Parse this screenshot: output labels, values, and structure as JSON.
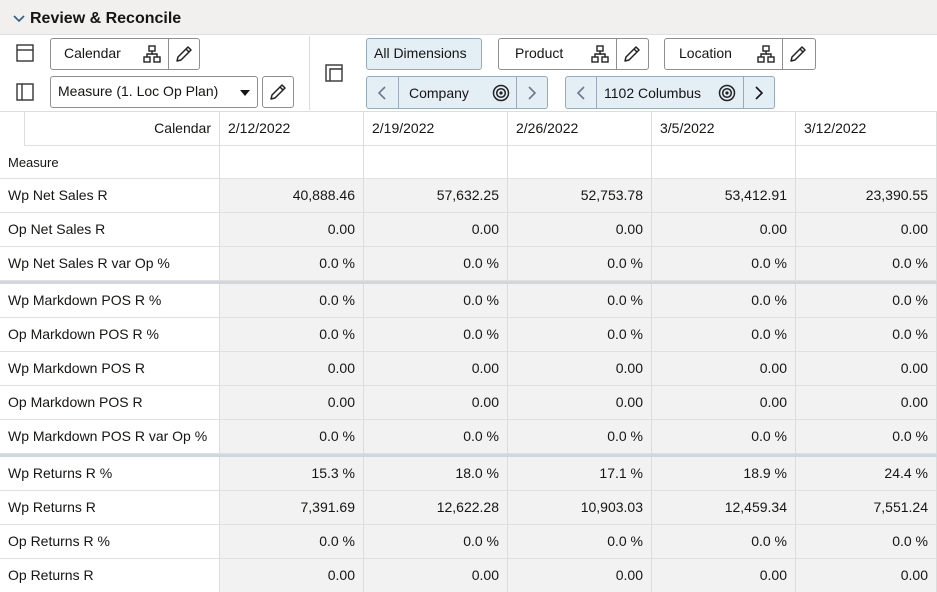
{
  "header": {
    "title": "Review & Reconcile"
  },
  "toolbar": {
    "calendar": "Calendar",
    "measure": "Measure (1. Loc Op Plan)",
    "all_dimensions": "All Dimensions",
    "product": "Product",
    "location": "Location",
    "company": "Company",
    "store": "1102 Columbus"
  },
  "grid": {
    "corner_label": "Calendar",
    "row_header_label": "Measure",
    "columns": [
      "2/12/2022",
      "2/19/2022",
      "2/26/2022",
      "3/5/2022",
      "3/12/2022"
    ],
    "row_groups": [
      [
        {
          "label": "Wp Net Sales R",
          "values": [
            "40,888.46",
            "57,632.25",
            "52,753.78",
            "53,412.91",
            "23,390.55"
          ]
        },
        {
          "label": "Op Net Sales R",
          "values": [
            "0.00",
            "0.00",
            "0.00",
            "0.00",
            "0.00"
          ]
        },
        {
          "label": "Wp Net Sales R var Op %",
          "values": [
            "0.0 %",
            "0.0 %",
            "0.0 %",
            "0.0 %",
            "0.0 %"
          ]
        }
      ],
      [
        {
          "label": "Wp Markdown POS R %",
          "values": [
            "0.0 %",
            "0.0 %",
            "0.0 %",
            "0.0 %",
            "0.0 %"
          ]
        },
        {
          "label": "Op Markdown POS R %",
          "values": [
            "0.0 %",
            "0.0 %",
            "0.0 %",
            "0.0 %",
            "0.0 %"
          ]
        },
        {
          "label": "Wp Markdown POS R",
          "values": [
            "0.00",
            "0.00",
            "0.00",
            "0.00",
            "0.00"
          ]
        },
        {
          "label": "Op Markdown POS R",
          "values": [
            "0.00",
            "0.00",
            "0.00",
            "0.00",
            "0.00"
          ]
        },
        {
          "label": "Wp Markdown POS R var Op %",
          "values": [
            "0.0 %",
            "0.0 %",
            "0.0 %",
            "0.0 %",
            "0.0 %"
          ]
        }
      ],
      [
        {
          "label": "Wp Returns R %",
          "values": [
            "15.3 %",
            "18.0 %",
            "17.1 %",
            "18.9 %",
            "24.4 %"
          ]
        },
        {
          "label": "Wp Returns R",
          "values": [
            "7,391.69",
            "12,622.28",
            "10,903.03",
            "12,459.34",
            "7,551.24"
          ]
        },
        {
          "label": "Op Returns R %",
          "values": [
            "0.0 %",
            "0.0 %",
            "0.0 %",
            "0.0 %",
            "0.0 %"
          ]
        },
        {
          "label": "Op Returns R",
          "values": [
            "0.00",
            "0.00",
            "0.00",
            "0.00",
            "0.00"
          ]
        }
      ]
    ]
  }
}
